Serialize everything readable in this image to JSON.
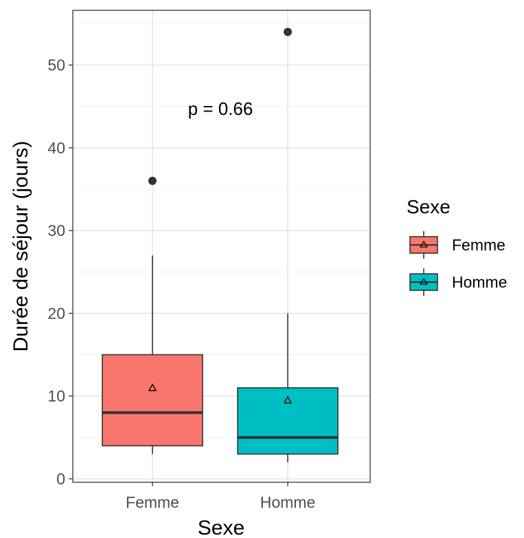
{
  "chart_data": {
    "type": "boxplot",
    "xlabel": "Sexe",
    "ylabel": "Durée de séjour (jours)",
    "ylim": [
      -0.5,
      56.5
    ],
    "yticks": [
      0,
      10,
      20,
      30,
      40,
      50
    ],
    "categories": [
      "Femme",
      "Homme"
    ],
    "boxes": [
      {
        "category": "Femme",
        "color": "#F8766D",
        "lower_whisker": 3,
        "q1": 4,
        "median": 8,
        "q3": 15,
        "upper_whisker": 27,
        "mean": 11,
        "outliers": [
          36
        ]
      },
      {
        "category": "Homme",
        "color": "#00BFC4",
        "lower_whisker": 2,
        "q1": 3,
        "median": 5,
        "q3": 11,
        "upper_whisker": 20,
        "mean": 9.5,
        "outliers": [
          54
        ]
      }
    ],
    "annotation": {
      "text": "p = 0.66"
    },
    "legend": {
      "title": "Sexe",
      "position": "right",
      "items": [
        {
          "label": "Femme",
          "color": "#F8766D"
        },
        {
          "label": "Homme",
          "color": "#00BFC4"
        }
      ]
    },
    "theme": "bw",
    "grid": true
  }
}
